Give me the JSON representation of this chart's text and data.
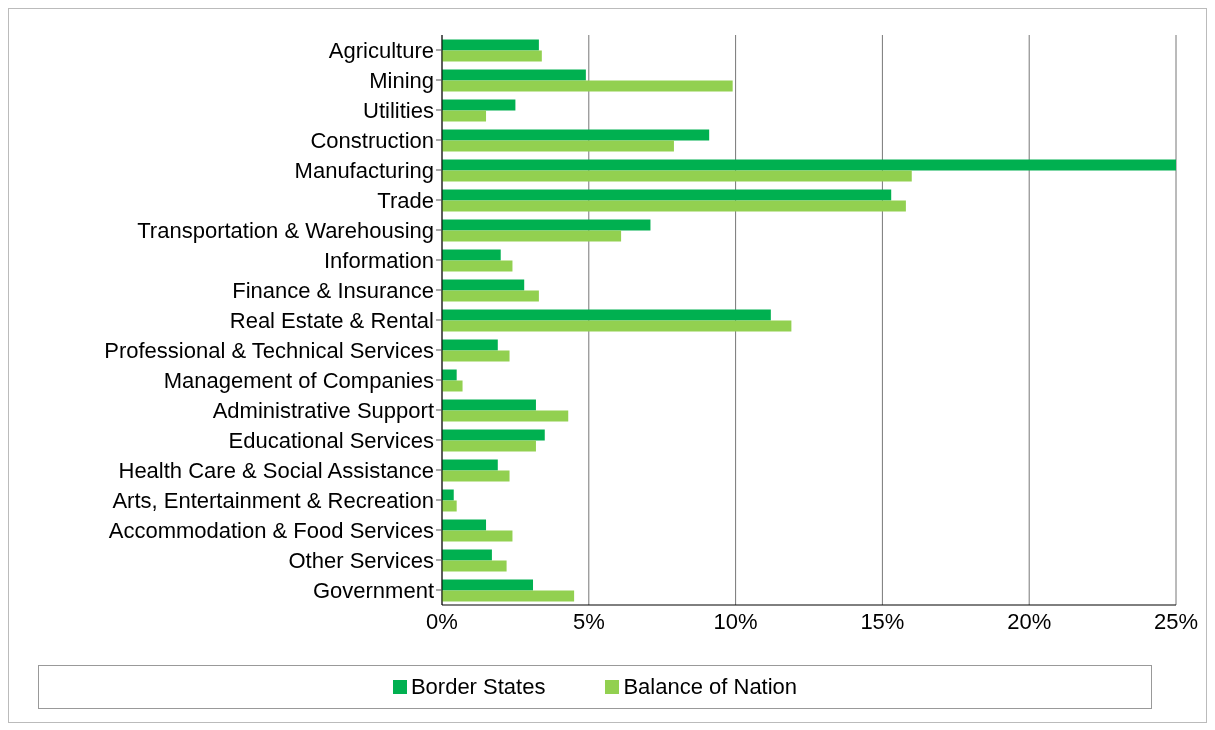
{
  "chart_data": {
    "type": "bar",
    "orientation": "horizontal",
    "categories": [
      "Agriculture",
      "Mining",
      "Utilities",
      "Construction",
      "Manufacturing",
      "Trade",
      "Transportation & Warehousing",
      "Information",
      "Finance & Insurance",
      "Real Estate & Rental",
      "Professional & Technical Services",
      "Management of Companies",
      "Administrative Support",
      "Educational Services",
      "Health Care & Social Assistance",
      "Arts, Entertainment & Recreation",
      "Accommodation & Food Services",
      "Other Services",
      "Government"
    ],
    "series": [
      {
        "name": "Border States",
        "color": "#00b050",
        "values": [
          3.3,
          4.9,
          2.5,
          9.1,
          25.0,
          15.3,
          7.1,
          2.0,
          2.8,
          11.2,
          1.9,
          0.5,
          3.2,
          3.5,
          1.9,
          0.4,
          1.5,
          1.7,
          3.1
        ]
      },
      {
        "name": "Balance of Nation",
        "color": "#92d050",
        "values": [
          3.4,
          9.9,
          1.5,
          7.9,
          16.0,
          15.8,
          6.1,
          2.4,
          3.3,
          11.9,
          2.3,
          0.7,
          4.3,
          3.2,
          2.3,
          0.5,
          2.4,
          2.2,
          4.5
        ]
      }
    ],
    "xlim": [
      0,
      25
    ],
    "xticks": [
      {
        "value": 0,
        "label": "0%"
      },
      {
        "value": 5,
        "label": "5%"
      },
      {
        "value": 10,
        "label": "10%"
      },
      {
        "value": 15,
        "label": "15%"
      },
      {
        "value": 20,
        "label": "20%"
      },
      {
        "value": 25,
        "label": "25%"
      }
    ],
    "grid": "x",
    "legend": "bottom"
  }
}
